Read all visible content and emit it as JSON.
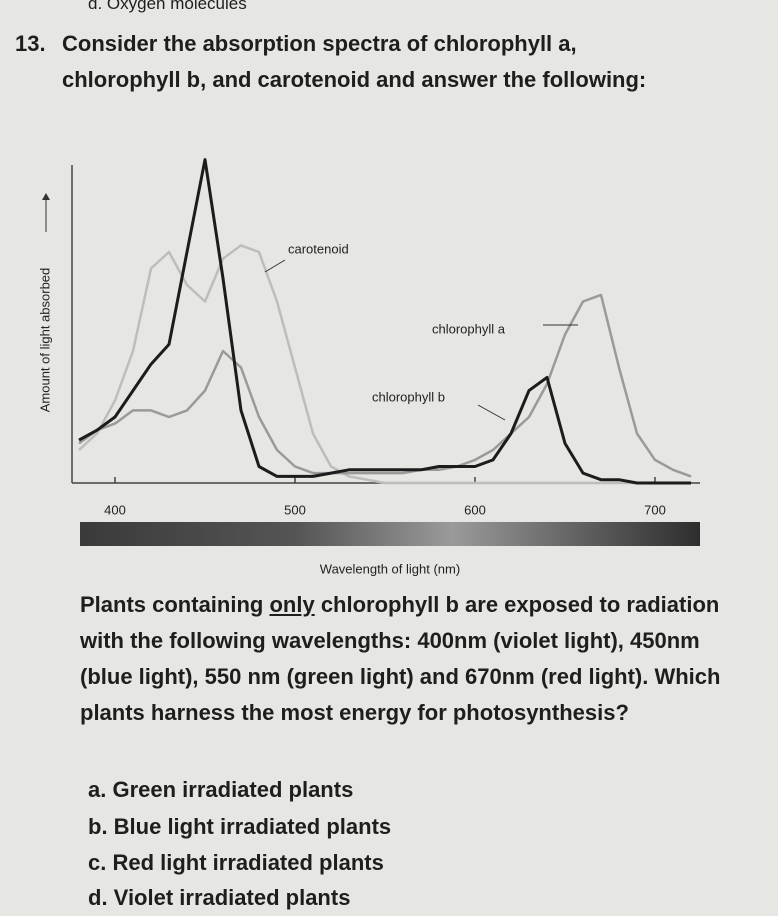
{
  "header_fragment": "d. Oxygen molecules",
  "question": {
    "number": "13.",
    "text": "Consider the absorption spectra of chlorophyll a, chlorophyll b, and carotenoid and answer the following:"
  },
  "chart_data": {
    "type": "line",
    "x_label": "Wavelength of light (nm)",
    "y_label": "Amount of light absorbed",
    "x": [
      380,
      390,
      400,
      410,
      420,
      430,
      440,
      450,
      460,
      470,
      480,
      490,
      500,
      510,
      520,
      530,
      540,
      550,
      560,
      570,
      580,
      590,
      600,
      610,
      620,
      630,
      640,
      650,
      660,
      670,
      680,
      690,
      700,
      710,
      720
    ],
    "series": [
      {
        "name": "carotenoid",
        "color": "#bdbdbb",
        "values": [
          10,
          15,
          25,
          40,
          65,
          70,
          60,
          55,
          68,
          72,
          70,
          55,
          35,
          15,
          5,
          2,
          1,
          0,
          0,
          0,
          0,
          0,
          0,
          0,
          0,
          0,
          0,
          0,
          0,
          0,
          0,
          0,
          0,
          0,
          0
        ]
      },
      {
        "name": "chlorophyll a",
        "color": "#9a9a98",
        "values": [
          12,
          16,
          18,
          22,
          22,
          20,
          22,
          28,
          40,
          35,
          20,
          10,
          5,
          3,
          3,
          3,
          3,
          3,
          3,
          4,
          4,
          5,
          7,
          10,
          15,
          20,
          30,
          45,
          55,
          57,
          35,
          15,
          7,
          4,
          2
        ]
      },
      {
        "name": "chlorophyll b",
        "color": "#1c1c1c",
        "values": [
          13,
          16,
          20,
          28,
          36,
          42,
          70,
          98,
          62,
          22,
          5,
          2,
          2,
          2,
          3,
          4,
          4,
          4,
          4,
          4,
          5,
          5,
          5,
          7,
          15,
          28,
          32,
          12,
          3,
          1,
          1,
          0,
          0,
          0,
          0
        ]
      }
    ],
    "xlim": [
      380,
      720
    ],
    "xticks": [
      400,
      500,
      600,
      700
    ],
    "ylim": [
      0,
      100
    ]
  },
  "question2": {
    "parts": [
      "Plants containing ",
      "only",
      " chlorophyll b are exposed to radiation with the following wavelengths: 400nm (violet light), 450nm (blue light), 550 nm (green light) and 670nm (red light). Which plants harness the most energy for photosynthesis?"
    ]
  },
  "options": [
    "a. Green irradiated plants",
    "b. Blue light irradiated plants",
    "c. Red light irradiated plants",
    "d. Violet irradiated plants"
  ]
}
